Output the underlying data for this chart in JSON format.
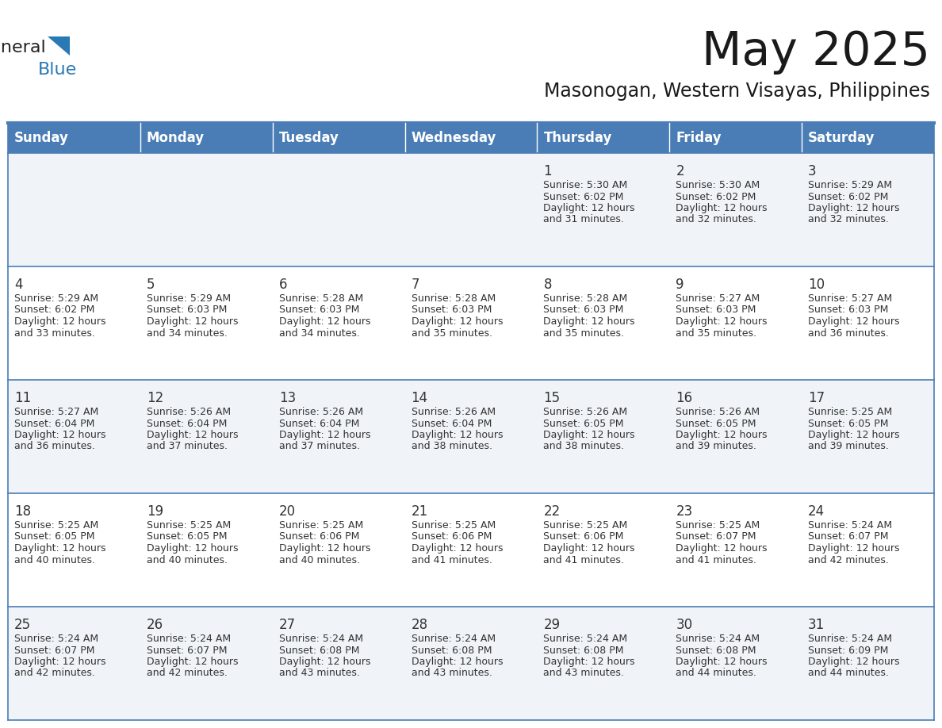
{
  "title": "May 2025",
  "subtitle": "Masonogan, Western Visayas, Philippines",
  "header_bg": "#4a7db5",
  "header_text": "#ffffff",
  "row_bg_odd": "#f0f4f8",
  "row_bg_even": "#ffffff",
  "day_names": [
    "Sunday",
    "Monday",
    "Tuesday",
    "Wednesday",
    "Thursday",
    "Friday",
    "Saturday"
  ],
  "day_num_color": "#333333",
  "cell_text_color": "#333333",
  "border_color": "#4a7db5",
  "calendar": [
    [
      null,
      null,
      null,
      null,
      {
        "day": "1",
        "sunrise": "5:30 AM",
        "sunset": "6:02 PM",
        "daylight_h": "12 hours",
        "daylight_m": "and 31 minutes."
      },
      {
        "day": "2",
        "sunrise": "5:30 AM",
        "sunset": "6:02 PM",
        "daylight_h": "12 hours",
        "daylight_m": "and 32 minutes."
      },
      {
        "day": "3",
        "sunrise": "5:29 AM",
        "sunset": "6:02 PM",
        "daylight_h": "12 hours",
        "daylight_m": "and 32 minutes."
      }
    ],
    [
      {
        "day": "4",
        "sunrise": "5:29 AM",
        "sunset": "6:02 PM",
        "daylight_h": "12 hours",
        "daylight_m": "and 33 minutes."
      },
      {
        "day": "5",
        "sunrise": "5:29 AM",
        "sunset": "6:03 PM",
        "daylight_h": "12 hours",
        "daylight_m": "and 34 minutes."
      },
      {
        "day": "6",
        "sunrise": "5:28 AM",
        "sunset": "6:03 PM",
        "daylight_h": "12 hours",
        "daylight_m": "and 34 minutes."
      },
      {
        "day": "7",
        "sunrise": "5:28 AM",
        "sunset": "6:03 PM",
        "daylight_h": "12 hours",
        "daylight_m": "and 35 minutes."
      },
      {
        "day": "8",
        "sunrise": "5:28 AM",
        "sunset": "6:03 PM",
        "daylight_h": "12 hours",
        "daylight_m": "and 35 minutes."
      },
      {
        "day": "9",
        "sunrise": "5:27 AM",
        "sunset": "6:03 PM",
        "daylight_h": "12 hours",
        "daylight_m": "and 35 minutes."
      },
      {
        "day": "10",
        "sunrise": "5:27 AM",
        "sunset": "6:03 PM",
        "daylight_h": "12 hours",
        "daylight_m": "and 36 minutes."
      }
    ],
    [
      {
        "day": "11",
        "sunrise": "5:27 AM",
        "sunset": "6:04 PM",
        "daylight_h": "12 hours",
        "daylight_m": "and 36 minutes."
      },
      {
        "day": "12",
        "sunrise": "5:26 AM",
        "sunset": "6:04 PM",
        "daylight_h": "12 hours",
        "daylight_m": "and 37 minutes."
      },
      {
        "day": "13",
        "sunrise": "5:26 AM",
        "sunset": "6:04 PM",
        "daylight_h": "12 hours",
        "daylight_m": "and 37 minutes."
      },
      {
        "day": "14",
        "sunrise": "5:26 AM",
        "sunset": "6:04 PM",
        "daylight_h": "12 hours",
        "daylight_m": "and 38 minutes."
      },
      {
        "day": "15",
        "sunrise": "5:26 AM",
        "sunset": "6:05 PM",
        "daylight_h": "12 hours",
        "daylight_m": "and 38 minutes."
      },
      {
        "day": "16",
        "sunrise": "5:26 AM",
        "sunset": "6:05 PM",
        "daylight_h": "12 hours",
        "daylight_m": "and 39 minutes."
      },
      {
        "day": "17",
        "sunrise": "5:25 AM",
        "sunset": "6:05 PM",
        "daylight_h": "12 hours",
        "daylight_m": "and 39 minutes."
      }
    ],
    [
      {
        "day": "18",
        "sunrise": "5:25 AM",
        "sunset": "6:05 PM",
        "daylight_h": "12 hours",
        "daylight_m": "and 40 minutes."
      },
      {
        "day": "19",
        "sunrise": "5:25 AM",
        "sunset": "6:05 PM",
        "daylight_h": "12 hours",
        "daylight_m": "and 40 minutes."
      },
      {
        "day": "20",
        "sunrise": "5:25 AM",
        "sunset": "6:06 PM",
        "daylight_h": "12 hours",
        "daylight_m": "and 40 minutes."
      },
      {
        "day": "21",
        "sunrise": "5:25 AM",
        "sunset": "6:06 PM",
        "daylight_h": "12 hours",
        "daylight_m": "and 41 minutes."
      },
      {
        "day": "22",
        "sunrise": "5:25 AM",
        "sunset": "6:06 PM",
        "daylight_h": "12 hours",
        "daylight_m": "and 41 minutes."
      },
      {
        "day": "23",
        "sunrise": "5:25 AM",
        "sunset": "6:07 PM",
        "daylight_h": "12 hours",
        "daylight_m": "and 41 minutes."
      },
      {
        "day": "24",
        "sunrise": "5:24 AM",
        "sunset": "6:07 PM",
        "daylight_h": "12 hours",
        "daylight_m": "and 42 minutes."
      }
    ],
    [
      {
        "day": "25",
        "sunrise": "5:24 AM",
        "sunset": "6:07 PM",
        "daylight_h": "12 hours",
        "daylight_m": "and 42 minutes."
      },
      {
        "day": "26",
        "sunrise": "5:24 AM",
        "sunset": "6:07 PM",
        "daylight_h": "12 hours",
        "daylight_m": "and 42 minutes."
      },
      {
        "day": "27",
        "sunrise": "5:24 AM",
        "sunset": "6:08 PM",
        "daylight_h": "12 hours",
        "daylight_m": "and 43 minutes."
      },
      {
        "day": "28",
        "sunrise": "5:24 AM",
        "sunset": "6:08 PM",
        "daylight_h": "12 hours",
        "daylight_m": "and 43 minutes."
      },
      {
        "day": "29",
        "sunrise": "5:24 AM",
        "sunset": "6:08 PM",
        "daylight_h": "12 hours",
        "daylight_m": "and 43 minutes."
      },
      {
        "day": "30",
        "sunrise": "5:24 AM",
        "sunset": "6:08 PM",
        "daylight_h": "12 hours",
        "daylight_m": "and 44 minutes."
      },
      {
        "day": "31",
        "sunrise": "5:24 AM",
        "sunset": "6:09 PM",
        "daylight_h": "12 hours",
        "daylight_m": "and 44 minutes."
      }
    ]
  ],
  "fig_width": 11.88,
  "fig_height": 9.18,
  "dpi": 100
}
